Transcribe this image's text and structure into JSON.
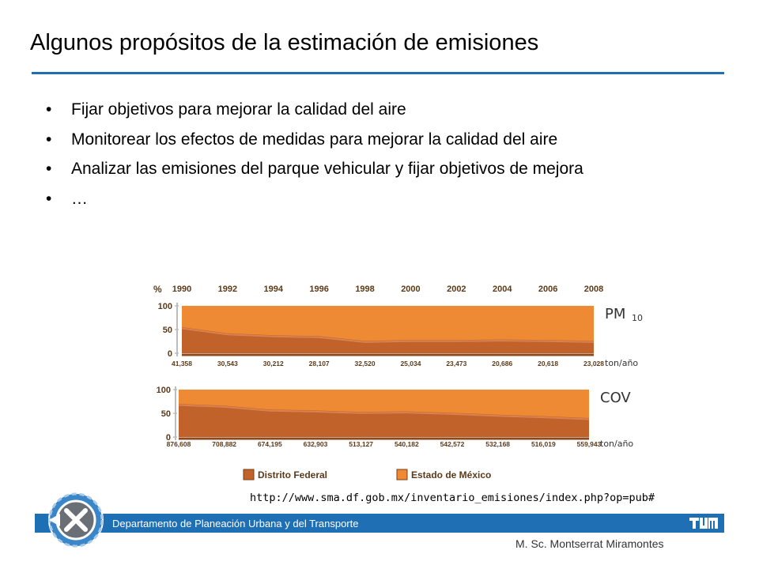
{
  "slide": {
    "title": "Algunos propósitos de la estimación de emisiones",
    "bullet_symbol": "•",
    "bullets": [
      "Fijar objetivos para mejorar la calidad del aire",
      "Monitorear los efectos de medidas para mejorar la calidad del aire",
      "Analizar las emisiones del parque vehicular y fijar objetivos de mejora",
      "…"
    ],
    "source_url": "http://www.sma.df.gob.mx/inventario_emisiones/index.php?op=pub#"
  },
  "footer": {
    "department": "Departamento de Planeación Urbana y del Transporte",
    "author": "M. Sc. Montserrat Miramontes",
    "logo_text": "TUM",
    "bar_color": "#1f6fb5"
  },
  "chart_data": [
    {
      "type": "area",
      "y_unit_label": "%",
      "ylim": [
        0,
        100
      ],
      "y_ticks": [
        "100",
        "50",
        "0"
      ],
      "x": [
        "1990",
        "1992",
        "1994",
        "1996",
        "1998",
        "2000",
        "2002",
        "2004",
        "2006",
        "2008"
      ],
      "series": [
        {
          "name": "Distrito Federal",
          "color": "#c1622a",
          "values": [
            55,
            42,
            38,
            36,
            26,
            28,
            28,
            29,
            28,
            26
          ]
        },
        {
          "name": "Estado de México",
          "color": "#ee8a34",
          "values": [
            45,
            58,
            62,
            64,
            74,
            72,
            72,
            71,
            72,
            74
          ]
        }
      ],
      "totals": [
        "41,358",
        "30,543",
        "30,212",
        "28,107",
        "32,520",
        "25,034",
        "23,473",
        "20,686",
        "20,618",
        "23,028"
      ],
      "totals_unit": "ton/año",
      "pollutant_label": "PM",
      "pollutant_subscript": "10"
    },
    {
      "type": "area",
      "ylim": [
        0,
        100
      ],
      "y_ticks": [
        "100",
        "50",
        "0"
      ],
      "x": [
        "1990",
        "1992",
        "1994",
        "1996",
        "1998",
        "2000",
        "2002",
        "2004",
        "2006",
        "2008"
      ],
      "series": [
        {
          "name": "Distrito Federal",
          "color": "#c1622a",
          "values": [
            70,
            66,
            58,
            56,
            53,
            54,
            51,
            47,
            44,
            40
          ]
        },
        {
          "name": "Estado de México",
          "color": "#ee8a34",
          "values": [
            30,
            34,
            42,
            44,
            47,
            46,
            49,
            53,
            56,
            60
          ]
        }
      ],
      "totals": [
        "876,608",
        "708,882",
        "674,195",
        "632,903",
        "513,127",
        "540,182",
        "542,572",
        "532,168",
        "516,019",
        "559,943"
      ],
      "totals_unit": "ton/año",
      "pollutant_label": "COV"
    }
  ],
  "legend": {
    "position": "bottom",
    "items": [
      {
        "label": "Distrito Federal",
        "color": "#c1622a"
      },
      {
        "label": "Estado de México",
        "color": "#ee8a34"
      }
    ]
  }
}
